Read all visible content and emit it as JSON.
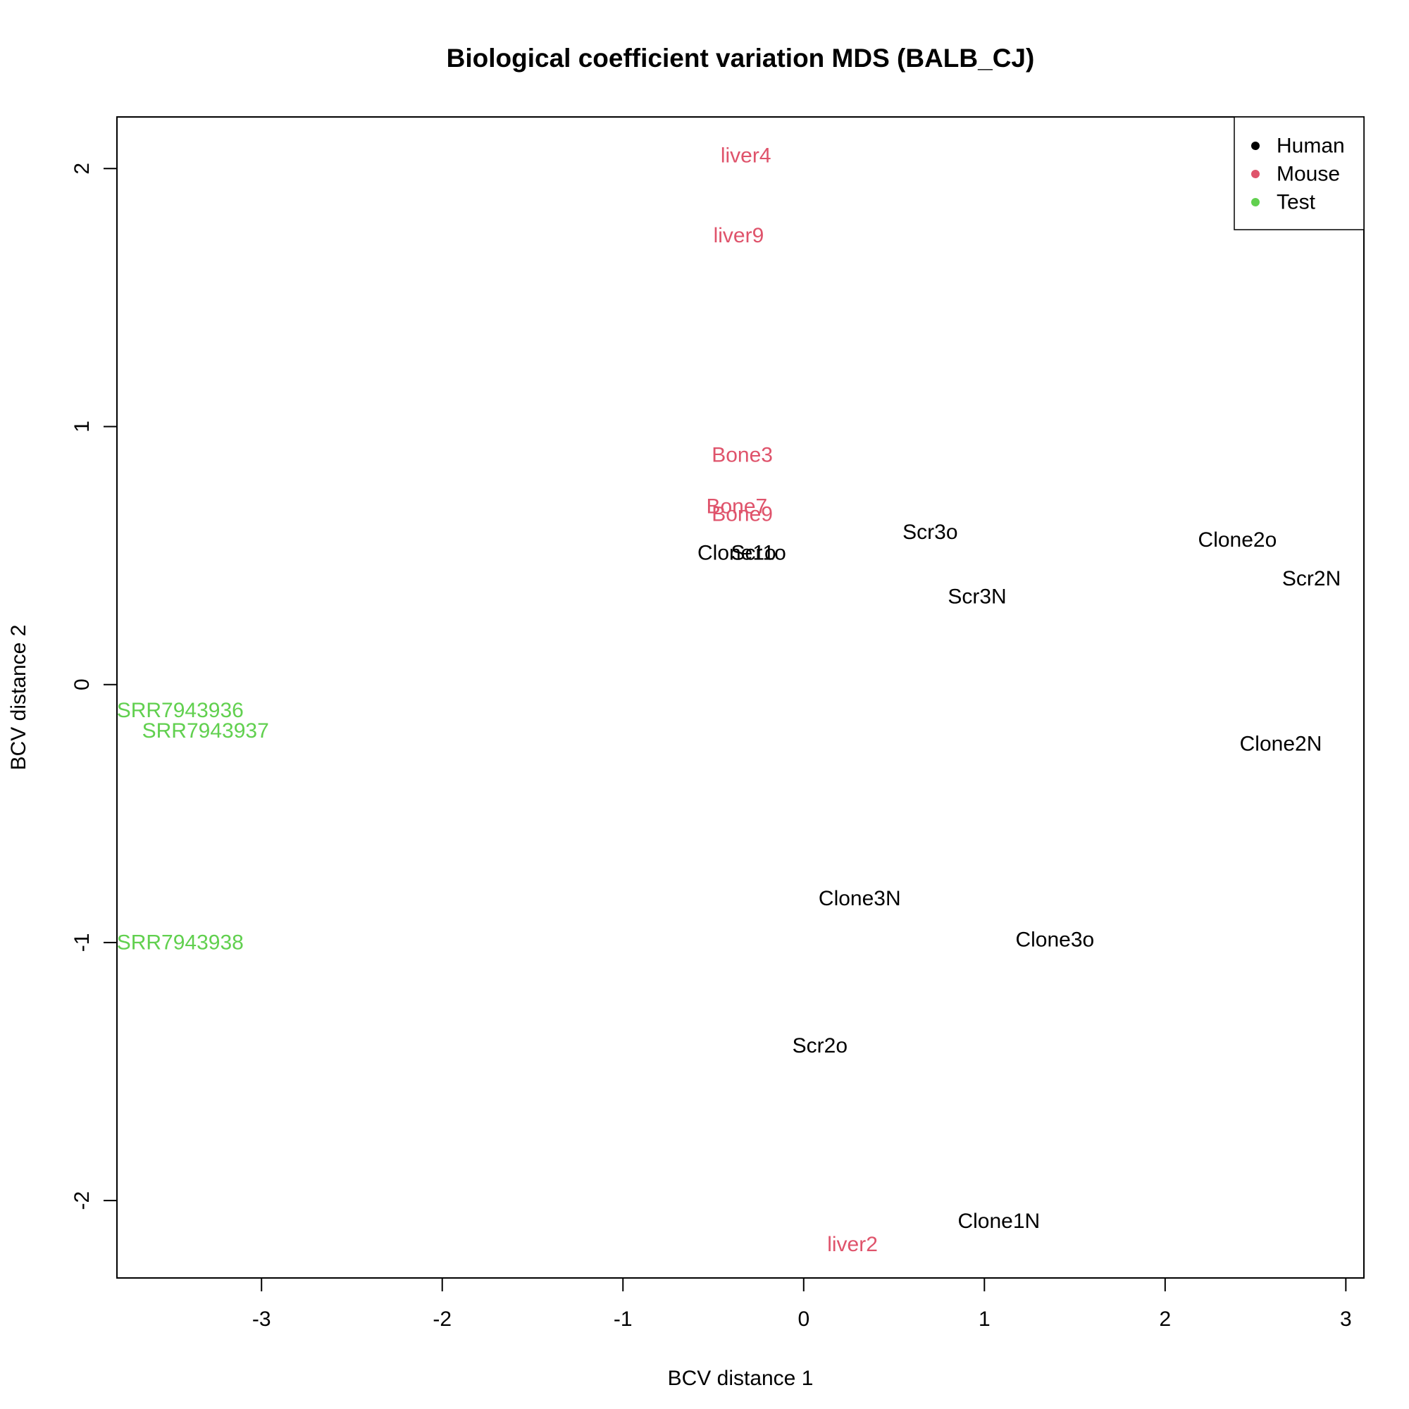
{
  "chart_data": {
    "type": "scatter",
    "title": "Biological coefficient variation MDS (BALB_CJ)",
    "xlabel": "BCV distance 1",
    "ylabel": "BCV distance 2",
    "xlim": [
      -3.8,
      3.1
    ],
    "ylim": [
      -2.3,
      2.2
    ],
    "xticks": [
      -3,
      -2,
      -1,
      0,
      1,
      2,
      3
    ],
    "yticks": [
      -2,
      -1,
      0,
      1,
      2
    ],
    "grid": false,
    "legend_position": "top-right",
    "series": [
      {
        "name": "Human",
        "color": "#000000",
        "points": [
          {
            "label": "Clone1o",
            "x": -0.37,
            "y": 0.51
          },
          {
            "label": "Scr1o",
            "x": -0.25,
            "y": 0.51
          },
          {
            "label": "Scr3o",
            "x": 0.7,
            "y": 0.59
          },
          {
            "label": "Scr3N",
            "x": 0.96,
            "y": 0.34
          },
          {
            "label": "Clone2o",
            "x": 2.4,
            "y": 0.56
          },
          {
            "label": "Scr2N",
            "x": 2.81,
            "y": 0.41
          },
          {
            "label": "Clone2N",
            "x": 2.64,
            "y": -0.23
          },
          {
            "label": "Clone3N",
            "x": 0.31,
            "y": -0.83
          },
          {
            "label": "Clone3o",
            "x": 1.39,
            "y": -0.99
          },
          {
            "label": "Scr2o",
            "x": 0.09,
            "y": -1.4
          },
          {
            "label": "Clone1N",
            "x": 1.08,
            "y": -2.08
          }
        ]
      },
      {
        "name": "Mouse",
        "color": "#DF536B",
        "points": [
          {
            "label": "liver4",
            "x": -0.32,
            "y": 2.05
          },
          {
            "label": "liver9",
            "x": -0.36,
            "y": 1.74
          },
          {
            "label": "Bone3",
            "x": -0.34,
            "y": 0.89
          },
          {
            "label": "Bone7",
            "x": -0.37,
            "y": 0.69
          },
          {
            "label": "Bone9",
            "x": -0.34,
            "y": 0.66
          },
          {
            "label": "liver2",
            "x": 0.27,
            "y": -2.17
          }
        ]
      },
      {
        "name": "Test",
        "color": "#61D04F",
        "points": [
          {
            "label": "SRR7943936",
            "x": -3.45,
            "y": -0.1
          },
          {
            "label": "SRR7943937",
            "x": -3.31,
            "y": -0.18
          },
          {
            "label": "SRR7943938",
            "x": -3.45,
            "y": -1.0
          }
        ]
      }
    ]
  }
}
